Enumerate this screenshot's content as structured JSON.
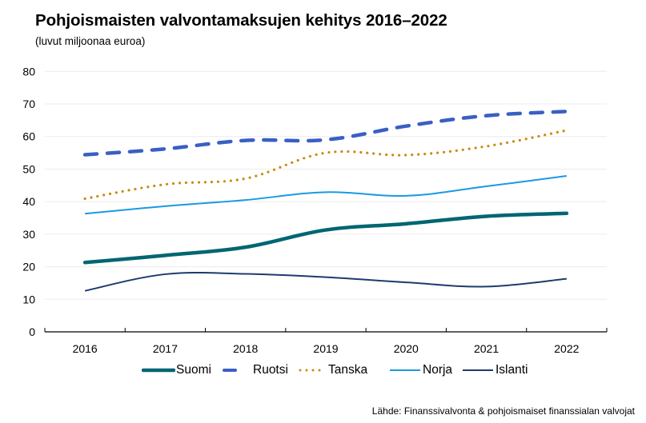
{
  "chart_data": {
    "type": "line",
    "title": "Pohjoismaisten valvontamaksujen kehitys 2016–2022",
    "subtitle": "(luvut miljoonaa euroa)",
    "xlabel": "",
    "ylabel": "",
    "categories": [
      "2016",
      "2017",
      "2018",
      "2019",
      "2020",
      "2021",
      "2022"
    ],
    "ylim": [
      0,
      80
    ],
    "yticks": [
      0,
      10,
      20,
      30,
      40,
      50,
      60,
      70,
      80
    ],
    "grid": true,
    "legend_position": "bottom",
    "series": [
      {
        "name": "Suomi",
        "color": "#006672",
        "style": "solid-thick",
        "values": [
          21.3,
          23.5,
          26.0,
          31.3,
          33.2,
          35.5,
          36.4
        ]
      },
      {
        "name": "Ruotsi",
        "color": "#3a5fc4",
        "style": "dashed",
        "values": [
          54.4,
          56.2,
          58.8,
          59.0,
          63.2,
          66.4,
          67.7
        ]
      },
      {
        "name": "Tanska",
        "color": "#c88c10",
        "style": "dotted",
        "values": [
          40.9,
          45.3,
          47.1,
          55.0,
          54.3,
          57.0,
          61.9
        ]
      },
      {
        "name": "Norja",
        "color": "#1a9ae0",
        "style": "solid-thin",
        "values": [
          36.3,
          38.6,
          40.5,
          42.9,
          41.8,
          44.7,
          47.9
        ]
      },
      {
        "name": "Islanti",
        "color": "#1e3a70",
        "style": "solid-medium",
        "values": [
          12.6,
          17.7,
          17.8,
          16.8,
          15.2,
          13.9,
          16.3
        ]
      }
    ],
    "source": "Lähde: Finanssivalvonta & pohjoismaiset finanssialan valvojat"
  }
}
